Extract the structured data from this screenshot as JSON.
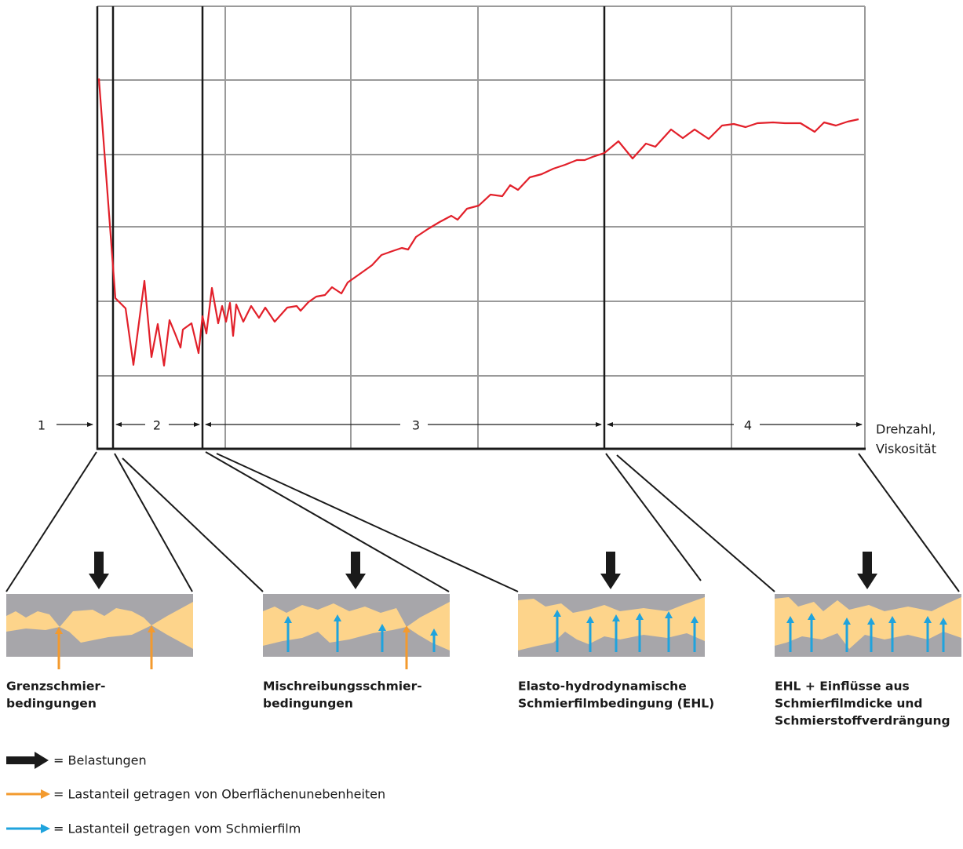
{
  "regions": [
    "1",
    "2",
    "3",
    "4"
  ],
  "axis_label": [
    "Drehzahl,",
    "Viskosität"
  ],
  "panels": [
    {
      "caption": [
        "Grenzschmier-",
        "bedingungen"
      ]
    },
    {
      "caption": [
        "Mischreibungsschmier-",
        "bedingungen"
      ]
    },
    {
      "caption": [
        "Elasto-hydrodynamische",
        "Schmierfilmbedingung (EHL)"
      ]
    },
    {
      "caption": [
        "EHL + Einflüsse aus",
        "Schmierfilmdicke und",
        "Schmierstoffverdrängung"
      ]
    }
  ],
  "legend": [
    "= Belastungen",
    "= Lastanteil getragen von Oberflächenunebenheiten",
    "= Lastanteil getragen vom Schmierfilm"
  ]
}
